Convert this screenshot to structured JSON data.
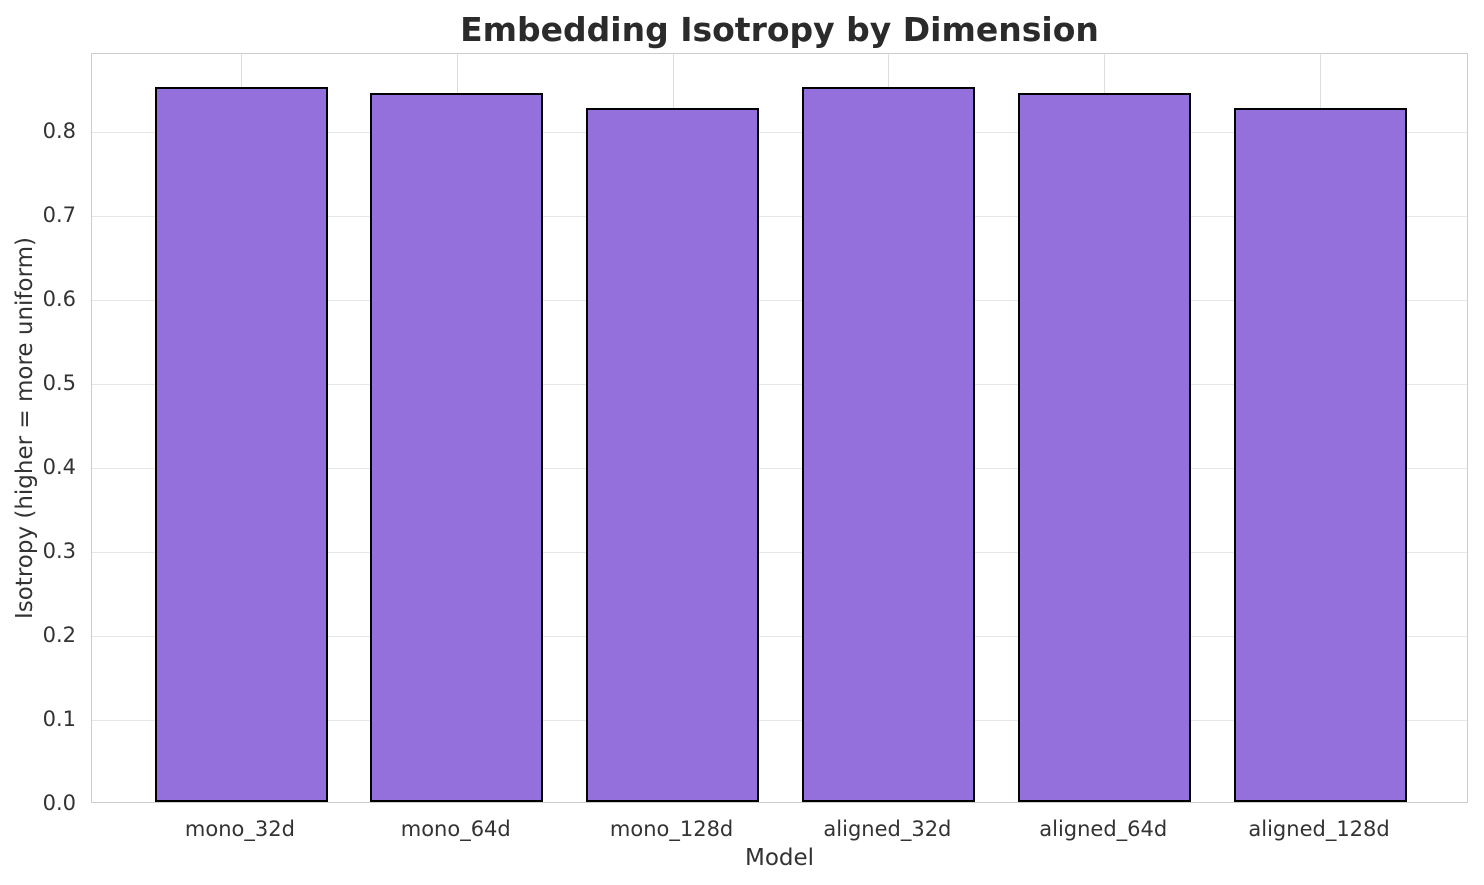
{
  "chart_data": {
    "type": "bar",
    "title": "Embedding Isotropy by Dimension",
    "xlabel": "Model",
    "ylabel": "Isotropy (higher = more uniform)",
    "categories": [
      "mono_32d",
      "mono_64d",
      "mono_128d",
      "aligned_32d",
      "aligned_64d",
      "aligned_128d"
    ],
    "values": [
      0.851,
      0.844,
      0.826,
      0.851,
      0.844,
      0.826
    ],
    "ylim": [
      0,
      0.893
    ],
    "yticks": [
      0.0,
      0.1,
      0.2,
      0.3,
      0.4,
      0.5,
      0.6,
      0.7,
      0.8
    ],
    "ytick_labels": [
      "0.0",
      "0.1",
      "0.2",
      "0.3",
      "0.4",
      "0.5",
      "0.6",
      "0.7",
      "0.8"
    ],
    "bar_width_fraction": 0.8,
    "grid": true,
    "legend_position": "none",
    "colors": {
      "bar_fill": "#9370DB",
      "bar_edge": "#000000",
      "grid_horizontal": "#e7e7e7",
      "grid_vertical": "#dedede",
      "spine": "#cccccc",
      "title_text": "#2b2b2b",
      "tick_text": "#333333",
      "background": "#ffffff"
    }
  }
}
